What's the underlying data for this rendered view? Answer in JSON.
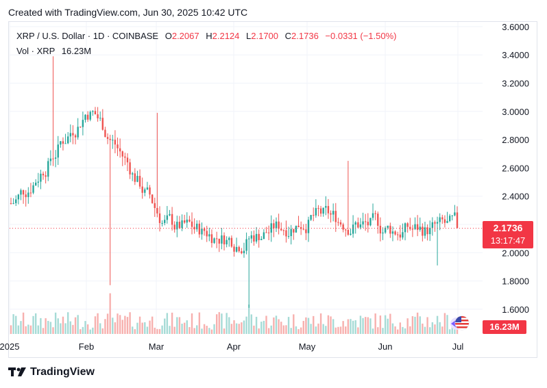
{
  "header": {
    "created_text": "Created with TradingView.com, Jun 30, 2025 10:42 UTC"
  },
  "legend": {
    "symbol": "XRP / U.S. Dollar · 1D · COINBASE",
    "o_label": "O",
    "o_value": "2.2067",
    "h_label": "H",
    "h_value": "2.2124",
    "l_label": "L",
    "l_value": "2.1700",
    "c_label": "C",
    "c_value": "2.1736",
    "change": "−0.0331 (−1.50%)",
    "vol_label": "Vol · XRP",
    "vol_value": "16.23M"
  },
  "price_tag": {
    "price": "2.1736",
    "countdown": "13:17:47"
  },
  "vol_tag": {
    "value": "16.23M"
  },
  "brand": {
    "name": "TradingView"
  },
  "colors": {
    "up": "#26a69a",
    "down": "#ef5350",
    "up_vol": "#a6dbd6",
    "down_vol": "#f7b0ae",
    "last_price": "#f23645"
  },
  "chart_data": {
    "type": "candlestick",
    "title": "XRP / U.S. Dollar · 1D · COINBASE",
    "y_ticks": [
      "3.6000",
      "3.4000",
      "3.2000",
      "3.0000",
      "2.8000",
      "2.6000",
      "2.4000",
      "2.2000",
      "2.0000",
      "1.8000",
      "1.6000"
    ],
    "x_ticks": [
      "2025",
      "Feb",
      "Mar",
      "Apr",
      "May",
      "Jun",
      "Jul"
    ],
    "ylim": [
      1.5,
      3.6
    ],
    "last_price": 2.1736,
    "monthly_approx": [
      {
        "month": "Jan",
        "start": 2.35,
        "high": 3.39,
        "low": 2.18,
        "end": 3.05
      },
      {
        "month": "Feb",
        "start": 3.05,
        "high": 3.15,
        "low": 1.77,
        "end": 2.2
      },
      {
        "month": "Mar",
        "start": 2.2,
        "high": 2.99,
        "low": 1.9,
        "end": 2.09
      },
      {
        "month": "Apr",
        "start": 2.09,
        "high": 2.3,
        "low": 1.61,
        "end": 2.26
      },
      {
        "month": "May",
        "start": 2.26,
        "high": 2.65,
        "low": 2.08,
        "end": 2.16
      },
      {
        "month": "Jun",
        "start": 2.16,
        "high": 2.33,
        "low": 1.91,
        "end": 2.17
      }
    ]
  }
}
